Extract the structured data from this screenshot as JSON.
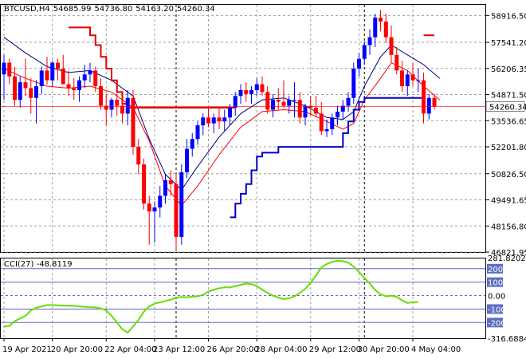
{
  "chart_data": [
    {
      "type": "candlestick",
      "header": {
        "symbol": "BTCUSD,H4",
        "open": "54685.99",
        "high": "54736.80",
        "low": "54163.20",
        "close": "54260.34"
      },
      "price_axis": {
        "ticks": [
          "58916.50",
          "57541.20",
          "56206.35",
          "54871.50",
          "53536.65",
          "52201.80",
          "50826.50",
          "49491.65",
          "48156.80",
          "46821.95"
        ],
        "ylim": [
          46821.95,
          59500
        ],
        "current_price_label": "54260.34"
      },
      "x_tick_labels": [
        "19 Apr 2021",
        "20 Apr 20:00",
        "22 Apr 04:00",
        "23 Apr 12:00",
        "26 Apr 20:00",
        "28 Apr 04:00",
        "29 Apr 12:00",
        "30 Apr 20:00",
        "4 May 04:00"
      ],
      "candles": [
        {
          "o": 55900,
          "h": 56900,
          "l": 54600,
          "c": 56500
        },
        {
          "o": 56500,
          "h": 56700,
          "l": 55400,
          "c": 55800
        },
        {
          "o": 55800,
          "h": 56300,
          "l": 54300,
          "c": 54600
        },
        {
          "o": 54600,
          "h": 55800,
          "l": 54200,
          "c": 55500
        },
        {
          "o": 55500,
          "h": 56700,
          "l": 54800,
          "c": 55200
        },
        {
          "o": 55200,
          "h": 55700,
          "l": 53900,
          "c": 54700
        },
        {
          "o": 54700,
          "h": 55600,
          "l": 53400,
          "c": 55300
        },
        {
          "o": 55300,
          "h": 56300,
          "l": 54900,
          "c": 56100
        },
        {
          "o": 56100,
          "h": 56800,
          "l": 55400,
          "c": 55600
        },
        {
          "o": 55600,
          "h": 56600,
          "l": 55300,
          "c": 56500
        },
        {
          "o": 56500,
          "h": 56700,
          "l": 55600,
          "c": 56200
        },
        {
          "o": 56200,
          "h": 56900,
          "l": 55500,
          "c": 55400
        },
        {
          "o": 55400,
          "h": 56100,
          "l": 54800,
          "c": 55200
        },
        {
          "o": 55200,
          "h": 55700,
          "l": 54600,
          "c": 55100
        },
        {
          "o": 55100,
          "h": 55800,
          "l": 54500,
          "c": 55600
        },
        {
          "o": 55600,
          "h": 56400,
          "l": 55200,
          "c": 55900
        },
        {
          "o": 55900,
          "h": 56500,
          "l": 55500,
          "c": 56100
        },
        {
          "o": 56100,
          "h": 56300,
          "l": 55000,
          "c": 55300
        },
        {
          "o": 55300,
          "h": 55700,
          "l": 54100,
          "c": 54300
        },
        {
          "o": 54300,
          "h": 54900,
          "l": 53300,
          "c": 54100
        },
        {
          "o": 54100,
          "h": 54700,
          "l": 53700,
          "c": 54600
        },
        {
          "o": 54600,
          "h": 54900,
          "l": 53800,
          "c": 54300
        },
        {
          "o": 54300,
          "h": 54800,
          "l": 53400,
          "c": 53900
        },
        {
          "o": 53900,
          "h": 55100,
          "l": 53300,
          "c": 54700
        },
        {
          "o": 54700,
          "h": 55100,
          "l": 51800,
          "c": 52200
        },
        {
          "o": 52200,
          "h": 52600,
          "l": 50800,
          "c": 51300
        },
        {
          "o": 51300,
          "h": 51600,
          "l": 49000,
          "c": 49300
        },
        {
          "o": 49300,
          "h": 49700,
          "l": 47200,
          "c": 48900
        },
        {
          "o": 48900,
          "h": 49400,
          "l": 47300,
          "c": 49100
        },
        {
          "o": 49100,
          "h": 50200,
          "l": 48600,
          "c": 49700
        },
        {
          "o": 49700,
          "h": 50800,
          "l": 49300,
          "c": 50500
        },
        {
          "o": 50500,
          "h": 51000,
          "l": 49700,
          "c": 50300
        },
        {
          "o": 50300,
          "h": 50800,
          "l": 46900,
          "c": 47600
        },
        {
          "o": 47600,
          "h": 51300,
          "l": 47200,
          "c": 50900
        },
        {
          "o": 50900,
          "h": 52600,
          "l": 50600,
          "c": 52100
        },
        {
          "o": 52100,
          "h": 52900,
          "l": 51700,
          "c": 52600
        },
        {
          "o": 52600,
          "h": 53500,
          "l": 52300,
          "c": 53300
        },
        {
          "o": 53300,
          "h": 53900,
          "l": 52800,
          "c": 53700
        },
        {
          "o": 53700,
          "h": 54200,
          "l": 53200,
          "c": 53400
        },
        {
          "o": 53400,
          "h": 53900,
          "l": 52900,
          "c": 53700
        },
        {
          "o": 53700,
          "h": 54200,
          "l": 53100,
          "c": 53500
        },
        {
          "o": 53500,
          "h": 54100,
          "l": 53000,
          "c": 53700
        },
        {
          "o": 53700,
          "h": 54400,
          "l": 53300,
          "c": 54200
        },
        {
          "o": 54200,
          "h": 55000,
          "l": 53800,
          "c": 54800
        },
        {
          "o": 54800,
          "h": 55400,
          "l": 54400,
          "c": 55100
        },
        {
          "o": 55100,
          "h": 55500,
          "l": 54500,
          "c": 54900
        },
        {
          "o": 54900,
          "h": 55300,
          "l": 54400,
          "c": 55100
        },
        {
          "o": 55100,
          "h": 55700,
          "l": 54800,
          "c": 55400
        },
        {
          "o": 55400,
          "h": 55800,
          "l": 54800,
          "c": 55000
        },
        {
          "o": 55000,
          "h": 55300,
          "l": 53900,
          "c": 54100
        },
        {
          "o": 54100,
          "h": 54900,
          "l": 53700,
          "c": 54600
        },
        {
          "o": 54600,
          "h": 55200,
          "l": 54100,
          "c": 54500
        },
        {
          "o": 54500,
          "h": 55600,
          "l": 54200,
          "c": 54300
        },
        {
          "o": 54300,
          "h": 54800,
          "l": 53900,
          "c": 54600
        },
        {
          "o": 54600,
          "h": 55500,
          "l": 53700,
          "c": 54600
        },
        {
          "o": 54600,
          "h": 55000,
          "l": 53400,
          "c": 53700
        },
        {
          "o": 53700,
          "h": 54400,
          "l": 53300,
          "c": 54300
        },
        {
          "o": 54300,
          "h": 54800,
          "l": 53800,
          "c": 54200
        },
        {
          "o": 54200,
          "h": 54800,
          "l": 53700,
          "c": 53900
        },
        {
          "o": 53900,
          "h": 54500,
          "l": 52800,
          "c": 53000
        },
        {
          "o": 53000,
          "h": 53600,
          "l": 52700,
          "c": 53100
        },
        {
          "o": 53100,
          "h": 53900,
          "l": 52800,
          "c": 53700
        },
        {
          "o": 53700,
          "h": 54300,
          "l": 53300,
          "c": 54000
        },
        {
          "o": 54000,
          "h": 54600,
          "l": 53600,
          "c": 54300
        },
        {
          "o": 54300,
          "h": 55000,
          "l": 54000,
          "c": 54700
        },
        {
          "o": 54700,
          "h": 56500,
          "l": 54400,
          "c": 56200
        },
        {
          "o": 56200,
          "h": 57000,
          "l": 55800,
          "c": 56700
        },
        {
          "o": 56700,
          "h": 57600,
          "l": 56400,
          "c": 57400
        },
        {
          "o": 57400,
          "h": 58200,
          "l": 56900,
          "c": 57800
        },
        {
          "o": 57800,
          "h": 59000,
          "l": 57300,
          "c": 58800
        },
        {
          "o": 58800,
          "h": 59200,
          "l": 58100,
          "c": 58600
        },
        {
          "o": 58600,
          "h": 59000,
          "l": 57500,
          "c": 57800
        },
        {
          "o": 57800,
          "h": 58400,
          "l": 56500,
          "c": 56900
        },
        {
          "o": 56900,
          "h": 57300,
          "l": 55900,
          "c": 56100
        },
        {
          "o": 56100,
          "h": 56600,
          "l": 55000,
          "c": 55300
        },
        {
          "o": 55300,
          "h": 56100,
          "l": 54800,
          "c": 55900
        },
        {
          "o": 55900,
          "h": 56500,
          "l": 55300,
          "c": 55600
        },
        {
          "o": 55600,
          "h": 56200,
          "l": 55000,
          "c": 55600
        },
        {
          "o": 55600,
          "h": 56000,
          "l": 53400,
          "c": 53900
        },
        {
          "o": 53900,
          "h": 54900,
          "l": 53600,
          "c": 54700
        },
        {
          "o": 54700,
          "h": 54900,
          "l": 54100,
          "c": 54260
        }
      ],
      "ma_fast": [
        [
          0,
          57800
        ],
        [
          4,
          57000
        ],
        [
          8,
          56300
        ],
        [
          12,
          56000
        ],
        [
          16,
          56100
        ],
        [
          20,
          55600
        ],
        [
          24,
          54800
        ],
        [
          27,
          52600
        ],
        [
          30,
          50800
        ],
        [
          33,
          50000
        ],
        [
          36,
          51200
        ],
        [
          40,
          52700
        ],
        [
          44,
          53900
        ],
        [
          48,
          54600
        ],
        [
          52,
          54700
        ],
        [
          56,
          54300
        ],
        [
          60,
          53700
        ],
        [
          63,
          53600
        ],
        [
          65,
          54000
        ],
        [
          67,
          55300
        ],
        [
          70,
          56800
        ],
        [
          72,
          57400
        ],
        [
          75,
          56900
        ],
        [
          78,
          56400
        ],
        [
          81,
          55700
        ]
      ],
      "ma_slow": [
        [
          0,
          56200
        ],
        [
          4,
          55700
        ],
        [
          8,
          55300
        ],
        [
          12,
          55200
        ],
        [
          16,
          55300
        ],
        [
          20,
          55000
        ],
        [
          24,
          54200
        ],
        [
          27,
          52500
        ],
        [
          30,
          50200
        ],
        [
          33,
          49200
        ],
        [
          36,
          50200
        ],
        [
          40,
          51800
        ],
        [
          44,
          53200
        ],
        [
          48,
          54000
        ],
        [
          52,
          54100
        ],
        [
          56,
          54000
        ],
        [
          60,
          53500
        ],
        [
          63,
          53100
        ],
        [
          65,
          53400
        ],
        [
          67,
          54600
        ],
        [
          70,
          55700
        ],
        [
          72,
          56500
        ],
        [
          75,
          56100
        ],
        [
          78,
          55300
        ],
        [
          81,
          54600
        ]
      ],
      "stop_red": [
        {
          "x1": 12,
          "x2": 16,
          "y": 58300
        },
        {
          "x1": 16,
          "x2": 17,
          "y": 57900
        },
        {
          "x1": 17,
          "x2": 18,
          "y": 57400
        },
        {
          "x1": 18,
          "x2": 19,
          "y": 56800
        },
        {
          "x1": 19,
          "x2": 20,
          "y": 56200
        },
        {
          "x1": 20,
          "x2": 21,
          "y": 55600
        },
        {
          "x1": 21,
          "x2": 22,
          "y": 55000
        },
        {
          "x1": 22,
          "x2": 23,
          "y": 54400
        },
        {
          "x1": 23,
          "x2": 43,
          "y": 54200
        },
        {
          "x1": 78,
          "x2": 80,
          "y": 57900
        }
      ],
      "stop_blue": [
        {
          "x1": 42,
          "x2": 43,
          "y": 48600
        },
        {
          "x1": 43,
          "x2": 44,
          "y": 49300
        },
        {
          "x1": 44,
          "x2": 45,
          "y": 49800
        },
        {
          "x1": 45,
          "x2": 46,
          "y": 50300
        },
        {
          "x1": 46,
          "x2": 47,
          "y": 51000
        },
        {
          "x1": 47,
          "x2": 48,
          "y": 51700
        },
        {
          "x1": 48,
          "x2": 51,
          "y": 51900
        },
        {
          "x1": 51,
          "x2": 63,
          "y": 52200
        },
        {
          "x1": 63,
          "x2": 64,
          "y": 52900
        },
        {
          "x1": 64,
          "x2": 65,
          "y": 53500
        },
        {
          "x1": 65,
          "x2": 66,
          "y": 54100
        },
        {
          "x1": 66,
          "x2": 67,
          "y": 54500
        },
        {
          "x1": 67,
          "x2": 78,
          "y": 54700
        }
      ],
      "colors": {
        "bull": "#0000ff",
        "bear": "#ff0000",
        "ma_fast": "#000080",
        "ma_slow": "#ff0000",
        "stop_red": "#e00000",
        "stop_blue": "#0000c8",
        "grid": "#a0a0a0",
        "current_bg": "#ff0000"
      }
    },
    {
      "type": "line",
      "indicator_label": "CCI(27) -48.8119",
      "ylim": [
        -316.6884,
        281.8202
      ],
      "axis_labels": [
        "281.8202",
        "200",
        "100",
        "0.00",
        "-100",
        "-200",
        "-316.6884"
      ],
      "levels": [
        200,
        100,
        0,
        -100,
        -200
      ],
      "values": [
        -230,
        -225,
        -190,
        -170,
        -150,
        -110,
        -90,
        -80,
        -70,
        -70,
        -72,
        -74,
        -75,
        -76,
        -80,
        -83,
        -86,
        -88,
        -95,
        -110,
        -150,
        -200,
        -250,
        -275,
        -230,
        -180,
        -120,
        -80,
        -60,
        -50,
        -40,
        -30,
        -15,
        -10,
        -12,
        -8,
        -5,
        5,
        30,
        45,
        55,
        62,
        60,
        70,
        80,
        90,
        85,
        70,
        45,
        20,
        0,
        -15,
        -25,
        -20,
        -5,
        20,
        50,
        95,
        150,
        210,
        235,
        250,
        260,
        255,
        245,
        215,
        175,
        130,
        90,
        40,
        10,
        -5,
        0,
        -10,
        -35,
        -55,
        -48,
        -48.8119
      ],
      "colors": {
        "line": "#66dd00",
        "level": "#6666cc",
        "label_bg": "#5b6ec4"
      }
    }
  ]
}
